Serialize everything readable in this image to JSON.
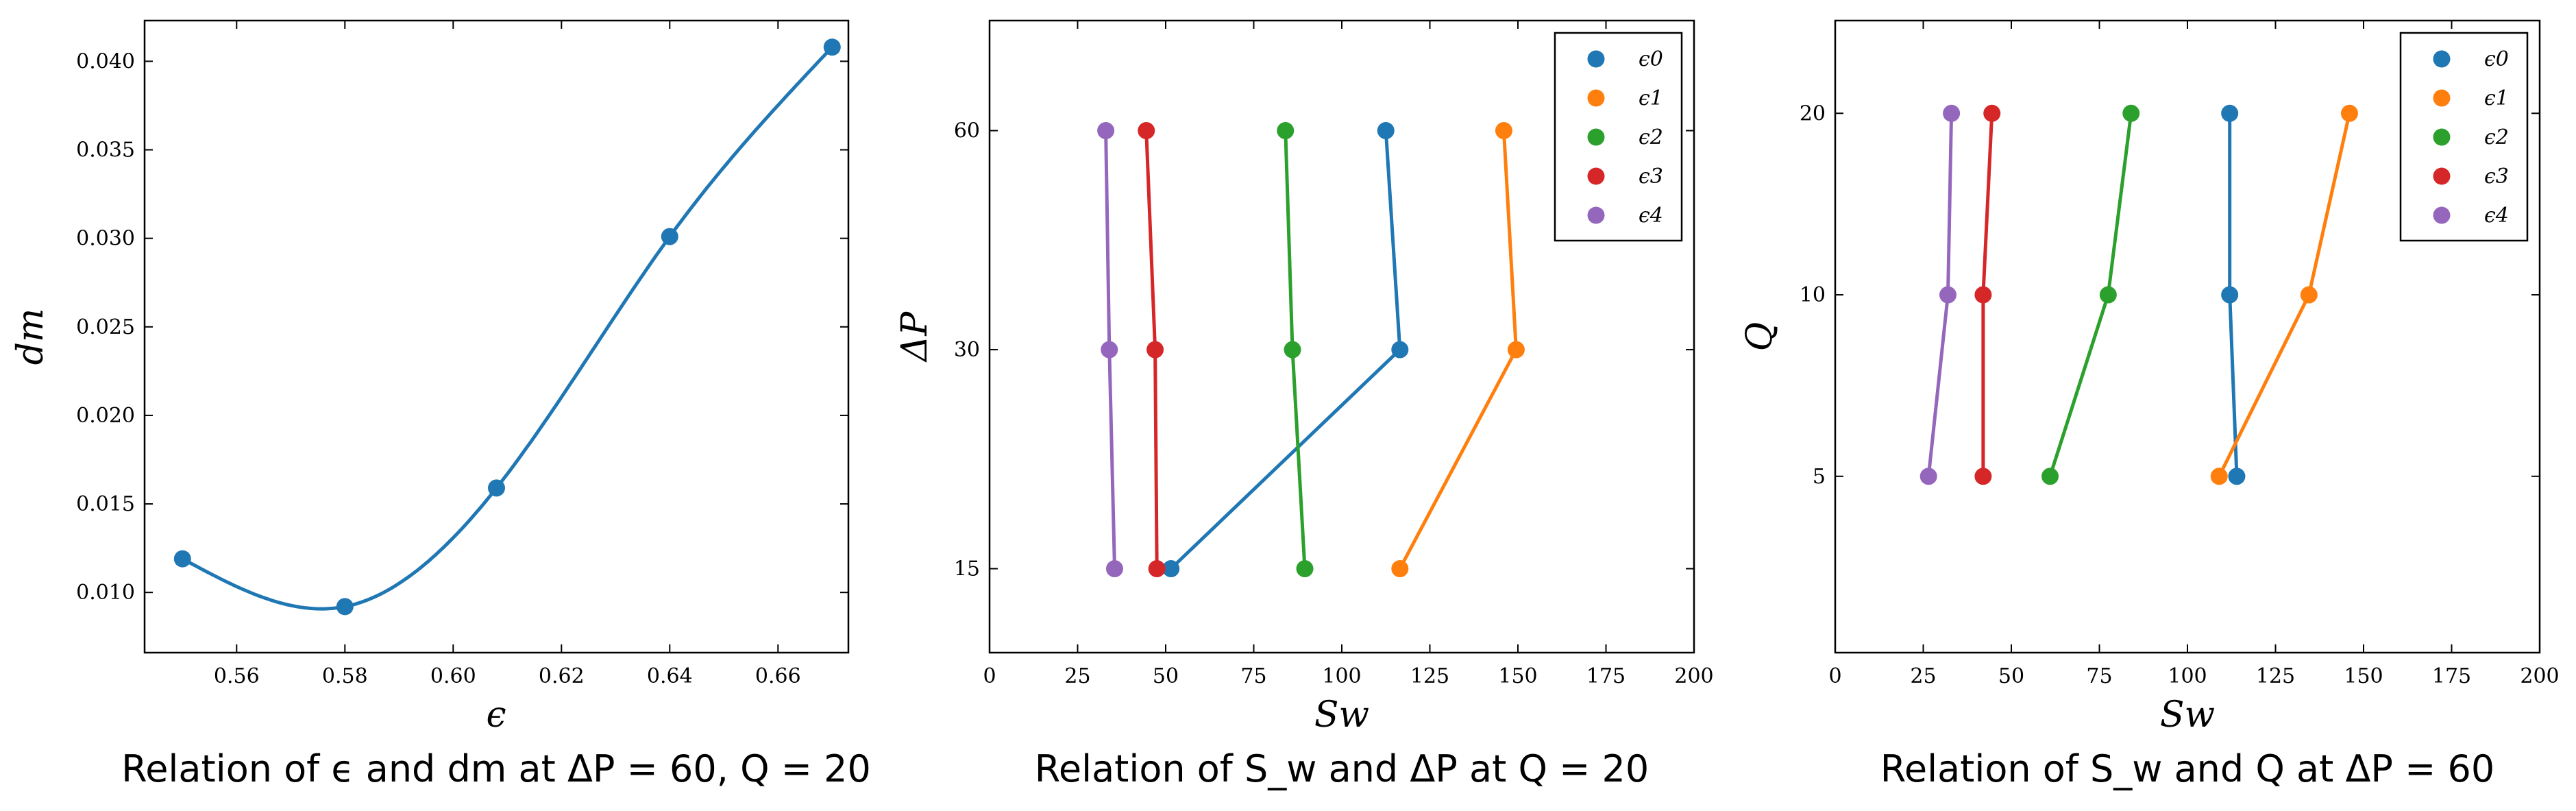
{
  "chart_data": [
    {
      "type": "line",
      "xlabel": "ϵ",
      "ylabel": "dm",
      "caption": "Relation of ϵ and dm at ΔP = 60, Q = 20",
      "xlim": [
        0.543,
        0.673
      ],
      "ylim": [
        0.0066,
        0.0423
      ],
      "xticks": [
        0.56,
        0.58,
        0.6,
        0.62,
        0.64,
        0.66
      ],
      "xtick_labels": [
        "0.56",
        "0.58",
        "0.60",
        "0.62",
        "0.64",
        "0.66"
      ],
      "yticks": [
        0.01,
        0.015,
        0.02,
        0.025,
        0.03,
        0.035,
        0.04
      ],
      "ytick_labels": [
        "0.010",
        "0.015",
        "0.020",
        "0.025",
        "0.030",
        "0.035",
        "0.040"
      ],
      "series": [
        {
          "x": [
            0.55,
            0.58,
            0.608,
            0.64,
            0.67
          ],
          "y": [
            0.0119,
            0.0092,
            0.0159,
            0.0301,
            0.0408
          ],
          "color": "#1f77b4",
          "smooth": true
        }
      ]
    },
    {
      "type": "line",
      "xlabel": "Sw",
      "ylabel": "ΔP",
      "caption": "Relation of S_w and ΔP at Q = 20",
      "log_y": true,
      "xlim": [
        0,
        200
      ],
      "ylim": [
        11.5,
        85
      ],
      "xticks": [
        0,
        25,
        50,
        75,
        100,
        125,
        150,
        175,
        200
      ],
      "xtick_labels": [
        "0",
        "25",
        "50",
        "75",
        "100",
        "125",
        "150",
        "175",
        "200"
      ],
      "yticks": [
        15,
        30,
        60
      ],
      "ytick_labels": [
        "15",
        "30",
        "60"
      ],
      "legend": "top-right",
      "series": [
        {
          "name": "ϵ0",
          "x": [
            51.5,
            116.5,
            112.5
          ],
          "y": [
            15,
            30,
            60
          ],
          "color": "#1f77b4"
        },
        {
          "name": "ϵ1",
          "x": [
            116.5,
            149.5,
            146
          ],
          "y": [
            15,
            30,
            60
          ],
          "color": "#ff7f0e"
        },
        {
          "name": "ϵ2",
          "x": [
            89.5,
            86,
            84
          ],
          "y": [
            15,
            30,
            60
          ],
          "color": "#2ca02c"
        },
        {
          "name": "ϵ3",
          "x": [
            47.5,
            47,
            44.5
          ],
          "y": [
            15,
            30,
            60
          ],
          "color": "#d62728"
        },
        {
          "name": "ϵ4",
          "x": [
            35.5,
            34,
            33
          ],
          "y": [
            15,
            30,
            60
          ],
          "color": "#9467bd"
        }
      ]
    },
    {
      "type": "line",
      "xlabel": "Sw",
      "ylabel": "Q",
      "caption": "Relation of S_w and Q at ΔP = 60",
      "log_y": true,
      "xlim": [
        0,
        200
      ],
      "ylim": [
        2.55,
        28.5
      ],
      "xticks": [
        0,
        25,
        50,
        75,
        100,
        125,
        150,
        175,
        200
      ],
      "xtick_labels": [
        "0",
        "25",
        "50",
        "75",
        "100",
        "125",
        "150",
        "175",
        "200"
      ],
      "yticks": [
        5,
        10,
        20
      ],
      "ytick_labels": [
        "5",
        "10",
        "20"
      ],
      "legend": "top-right",
      "series": [
        {
          "name": "ϵ0",
          "x": [
            114,
            112,
            112
          ],
          "y": [
            5,
            10,
            20
          ],
          "color": "#1f77b4"
        },
        {
          "name": "ϵ1",
          "x": [
            109,
            134.5,
            146
          ],
          "y": [
            5,
            10,
            20
          ],
          "color": "#ff7f0e"
        },
        {
          "name": "ϵ2",
          "x": [
            61,
            77.5,
            84
          ],
          "y": [
            5,
            10,
            20
          ],
          "color": "#2ca02c"
        },
        {
          "name": "ϵ3",
          "x": [
            42,
            42,
            44.5
          ],
          "y": [
            5,
            10,
            20
          ],
          "color": "#d62728"
        },
        {
          "name": "ϵ4",
          "x": [
            26.5,
            32,
            33
          ],
          "y": [
            5,
            10,
            20
          ],
          "color": "#9467bd"
        }
      ]
    }
  ]
}
